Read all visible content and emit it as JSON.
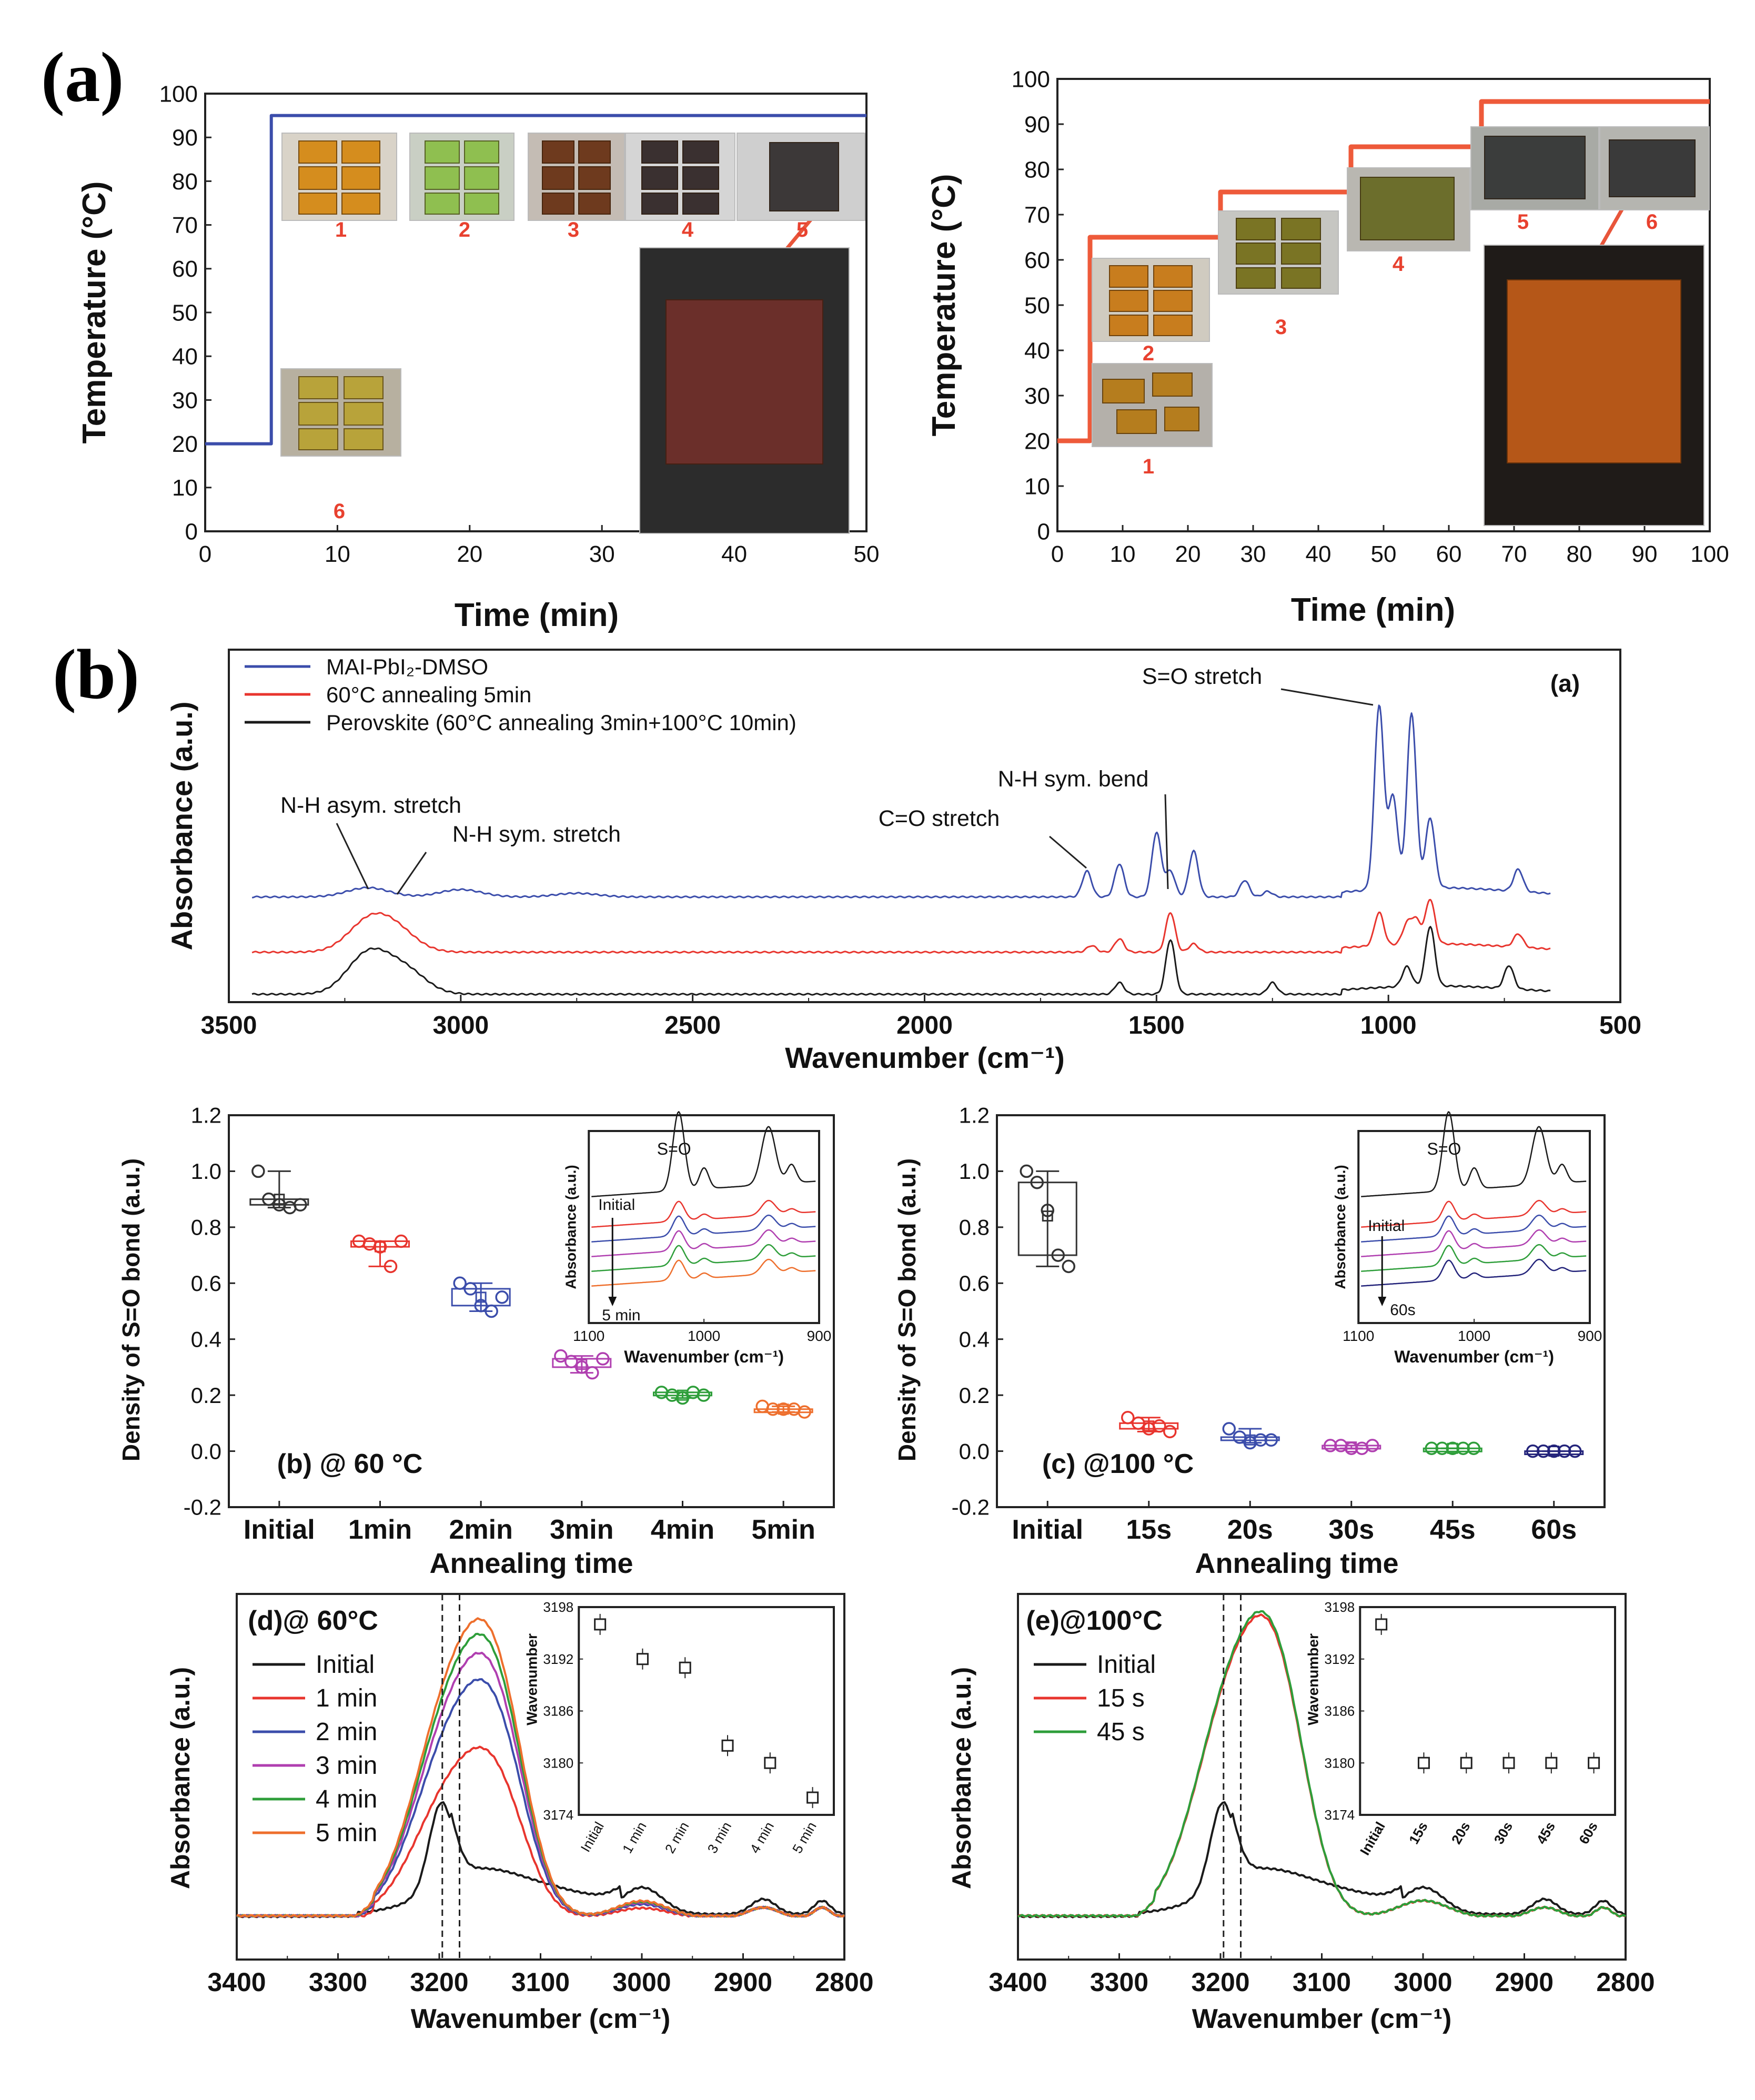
{
  "panel_labels": {
    "a": "(a)",
    "b": "(b)"
  },
  "chart_data": [
    {
      "id": "a-left",
      "type": "line",
      "xlabel": "Time (min)",
      "ylabel": "Temperature (°C)",
      "xlim": [
        0,
        50
      ],
      "ylim": [
        0,
        100
      ],
      "xticks": [
        "0",
        "10",
        "20",
        "30",
        "40",
        "50"
      ],
      "yticks": [
        "0",
        "10",
        "20",
        "30",
        "40",
        "50",
        "60",
        "70",
        "80",
        "90",
        "100"
      ],
      "series": [
        {
          "color": "#3b4dab",
          "x": [
            0,
            5,
            5,
            50
          ],
          "y": [
            20,
            20,
            95,
            95
          ]
        }
      ],
      "photo_labels": [
        "1",
        "2",
        "3",
        "4",
        "5",
        "6"
      ]
    },
    {
      "id": "a-right",
      "type": "line",
      "xlabel": "Time (min)",
      "ylabel": "Temperature (°C)",
      "xlim": [
        0,
        100
      ],
      "ylim": [
        0,
        100
      ],
      "xticks": [
        "0",
        "10",
        "20",
        "30",
        "40",
        "50",
        "60",
        "70",
        "80",
        "90",
        "100"
      ],
      "yticks": [
        "0",
        "10",
        "20",
        "30",
        "40",
        "50",
        "60",
        "70",
        "80",
        "90",
        "100"
      ],
      "series": [
        {
          "color": "#ee5a3a",
          "x": [
            0,
            5,
            5,
            25,
            25,
            45,
            45,
            65,
            65,
            100
          ],
          "y": [
            20,
            20,
            65,
            65,
            75,
            75,
            85,
            85,
            95,
            95
          ]
        }
      ],
      "photo_labels": [
        "1",
        "2",
        "3",
        "4",
        "5",
        "6"
      ]
    },
    {
      "id": "b-ftir",
      "type": "line",
      "panel_tag": "(a)",
      "xlabel": "Wavenumber (cm⁻¹)",
      "ylabel": "Absorbance (a.u.)",
      "xlim": [
        3500,
        500
      ],
      "xticks": [
        "3500",
        "3000",
        "2500",
        "2000",
        "1500",
        "1000",
        "500"
      ],
      "legend": [
        "MAI-PbI₂-DMSO",
        "60°C annealing 5min",
        "Perovskite (60°C annealing 3min+100°C 10min)"
      ],
      "annotations": [
        "S=O stretch",
        "N-H sym. bend",
        "C=O stretch",
        "N-H asym. stretch",
        "N-H sym. stretch"
      ],
      "series": [
        {
          "name": "MAI-PbI₂-DMSO",
          "color": "#3b4dab",
          "baseline": 0.6,
          "peaks": [
            [
              3200,
              0.05
            ],
            [
              3000,
              0.04
            ],
            [
              2750,
              0.02
            ],
            [
              1650,
              0.14
            ],
            [
              1580,
              0.18
            ],
            [
              1500,
              0.35
            ],
            [
              1470,
              0.14
            ],
            [
              1420,
              0.25
            ],
            [
              1310,
              0.09
            ],
            [
              1260,
              0.03
            ],
            [
              1020,
              1.0
            ],
            [
              990,
              0.5
            ],
            [
              950,
              0.95
            ],
            [
              910,
              0.38
            ],
            [
              720,
              0.12
            ]
          ]
        },
        {
          "name": "60°C annealing 5min",
          "color": "#e8352e",
          "baseline": 0.3,
          "peaks": [
            [
              3200,
              0.17
            ],
            [
              3140,
              0.12
            ],
            [
              1640,
              0.04
            ],
            [
              1580,
              0.08
            ],
            [
              1470,
              0.24
            ],
            [
              1420,
              0.05
            ],
            [
              1020,
              0.2
            ],
            [
              960,
              0.12
            ],
            [
              940,
              0.14
            ],
            [
              910,
              0.27
            ],
            [
              720,
              0.08
            ]
          ]
        },
        {
          "name": "Perovskite (60°C annealing 3min+100°C 10min)",
          "color": "#1a1a1a",
          "baseline": 0.0,
          "peaks": [
            [
              3200,
              0.24
            ],
            [
              3120,
              0.14
            ],
            [
              1580,
              0.07
            ],
            [
              1470,
              0.33
            ],
            [
              1250,
              0.07
            ],
            [
              960,
              0.12
            ],
            [
              910,
              0.36
            ],
            [
              740,
              0.14
            ]
          ]
        }
      ]
    },
    {
      "id": "b-box60",
      "type": "scatter",
      "panel_tag": "(b) @ 60 °C",
      "xlabel": "Annealing time",
      "ylabel": "Density of S=O bond (a.u.)",
      "ylim": [
        -0.2,
        1.2
      ],
      "yticks": [
        "-0.2",
        "0.0",
        "0.2",
        "0.4",
        "0.6",
        "0.8",
        "1.0",
        "1.2"
      ],
      "categories": [
        "Initial",
        "1min",
        "2min",
        "3min",
        "4min",
        "5min"
      ],
      "colors": [
        "#333333",
        "#e8352e",
        "#3b4dab",
        "#b03fb0",
        "#2e9e3a",
        "#ee6f2d"
      ],
      "points": [
        [
          1.0,
          0.9,
          0.88,
          0.87,
          0.88
        ],
        [
          0.75,
          0.74,
          0.73,
          0.66,
          0.75
        ],
        [
          0.6,
          0.58,
          0.52,
          0.5,
          0.55
        ],
        [
          0.34,
          0.32,
          0.3,
          0.28,
          0.33
        ],
        [
          0.21,
          0.2,
          0.19,
          0.21,
          0.2
        ],
        [
          0.16,
          0.15,
          0.15,
          0.15,
          0.14
        ]
      ],
      "means": [
        0.9,
        0.73,
        0.55,
        0.31,
        0.2,
        0.15
      ],
      "inset": {
        "title": "S=O",
        "xlabel": "Wavenumber (cm⁻¹)",
        "ylabel": "Absorbance (a.u.)",
        "xticks": [
          "1100",
          "1000",
          "900"
        ],
        "label_top": "Initial",
        "label_bottom": "5 min"
      }
    },
    {
      "id": "b-box100",
      "type": "scatter",
      "panel_tag": "(c) @100 °C",
      "xlabel": "Annealing time",
      "ylabel": "Density of S=O bond (a.u.)",
      "ylim": [
        -0.2,
        1.2
      ],
      "yticks": [
        "-0.2",
        "0.0",
        "0.2",
        "0.4",
        "0.6",
        "0.8",
        "1.0",
        "1.2"
      ],
      "categories": [
        "Initial",
        "15s",
        "20s",
        "30s",
        "45s",
        "60s"
      ],
      "colors": [
        "#333333",
        "#e8352e",
        "#3b4dab",
        "#b03fb0",
        "#2e9e3a",
        "#23237a"
      ],
      "points": [
        [
          1.0,
          0.96,
          0.86,
          0.7,
          0.66
        ],
        [
          0.12,
          0.1,
          0.08,
          0.09,
          0.07
        ],
        [
          0.08,
          0.05,
          0.03,
          0.04,
          0.04
        ],
        [
          0.02,
          0.02,
          0.01,
          0.01,
          0.02
        ],
        [
          0.01,
          0.01,
          0.01,
          0.01,
          0.01
        ],
        [
          0.0,
          0.0,
          0.0,
          0.0,
          0.0
        ]
      ],
      "means": [
        0.84,
        0.09,
        0.04,
        0.015,
        0.01,
        0.0
      ],
      "inset": {
        "title": "S=O",
        "xlabel": "Wavenumber (cm⁻¹)",
        "ylabel": "Absorbance (a.u.)",
        "xticks": [
          "1100",
          "1000",
          "900"
        ],
        "label_top": "Initial",
        "label_bottom": "60s"
      }
    },
    {
      "id": "b-nh60",
      "type": "line",
      "panel_tag": "(d)@ 60°C",
      "xlabel": "Wavenumber (cm⁻¹)",
      "ylabel": "Absorbance (a.u.)",
      "xlim": [
        3400,
        2800
      ],
      "xticks": [
        "3400",
        "3300",
        "3200",
        "3100",
        "3000",
        "2900",
        "2800"
      ],
      "series": [
        {
          "name": "Initial",
          "color": "#1a1a1a",
          "h": 0.27
        },
        {
          "name": "1 min",
          "color": "#e8352e",
          "h": 0.45
        },
        {
          "name": "2 min",
          "color": "#3b4dab",
          "h": 0.63
        },
        {
          "name": "3 min",
          "color": "#b03fb0",
          "h": 0.7
        },
        {
          "name": "4 min",
          "color": "#2e9e3a",
          "h": 0.75
        },
        {
          "name": "5 min",
          "color": "#ee6f2d",
          "h": 0.79
        }
      ],
      "inset": {
        "ylabel": "Wavenumber",
        "ylim": [
          3174,
          3198
        ],
        "yticks": [
          "3174",
          "3180",
          "3186",
          "3192",
          "3198"
        ],
        "categories": [
          "Initial",
          "1 min",
          "2 min",
          "3 min",
          "4 min",
          "5 min"
        ],
        "values": [
          3196,
          3192,
          3191,
          3182,
          3180,
          3176
        ]
      }
    },
    {
      "id": "b-nh100",
      "type": "line",
      "panel_tag": "(e)@100°C",
      "xlabel": "Wavenumber (cm⁻¹)",
      "ylabel": "Absorbance (a.u.)",
      "xlim": [
        3400,
        2800
      ],
      "xticks": [
        "3400",
        "3300",
        "3200",
        "3100",
        "3000",
        "2900",
        "2800"
      ],
      "series": [
        {
          "name": "Initial",
          "color": "#1a1a1a",
          "h": 0.27
        },
        {
          "name": "15 s",
          "color": "#e8352e",
          "h": 0.8
        },
        {
          "name": "45 s",
          "color": "#2e9e3a",
          "h": 0.81
        }
      ],
      "inset": {
        "ylabel": "Wavenumber",
        "ylim": [
          3174,
          3198
        ],
        "yticks": [
          "3174",
          "3180",
          "3186",
          "3192",
          "3198"
        ],
        "categories": [
          "Initial",
          "15s",
          "20s",
          "30s",
          "45s",
          "60s"
        ],
        "values": [
          3196,
          3180,
          3180,
          3180,
          3180,
          3180
        ]
      }
    }
  ]
}
